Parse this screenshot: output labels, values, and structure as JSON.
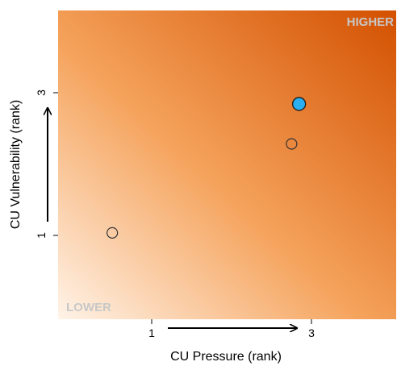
{
  "chart_data": {
    "type": "scatter",
    "title": "",
    "xlabel": "CU Pressure (rank)",
    "ylabel": "CU Vulnerability (rank)",
    "xlim": [
      0.42,
      4.04
    ],
    "ylim": [
      -0.34,
      4.45
    ],
    "x_ticks": [
      1,
      3
    ],
    "y_ticks": [
      1,
      3
    ],
    "x_tick_labels": [
      "1",
      "3"
    ],
    "y_tick_labels": [
      "1",
      "3"
    ],
    "corner_labels": {
      "high": "HIGHER",
      "low": "LOWER"
    },
    "grid": false,
    "background": "gradient from light (lower-left) to dark orange (upper-right)",
    "colors": {
      "gradient_low": "#fff3e8",
      "gradient_mid": "#f5a35c",
      "gradient_high": "#d35000",
      "highlight_point": "#29aef0",
      "open_point_stroke": "#333333"
    },
    "points": [
      {
        "x": 1.0,
        "y": 1.0,
        "highlight": false
      },
      {
        "x": 2.92,
        "y": 2.38,
        "highlight": false
      },
      {
        "x": 3.0,
        "y": 3.0,
        "highlight": true
      }
    ]
  }
}
